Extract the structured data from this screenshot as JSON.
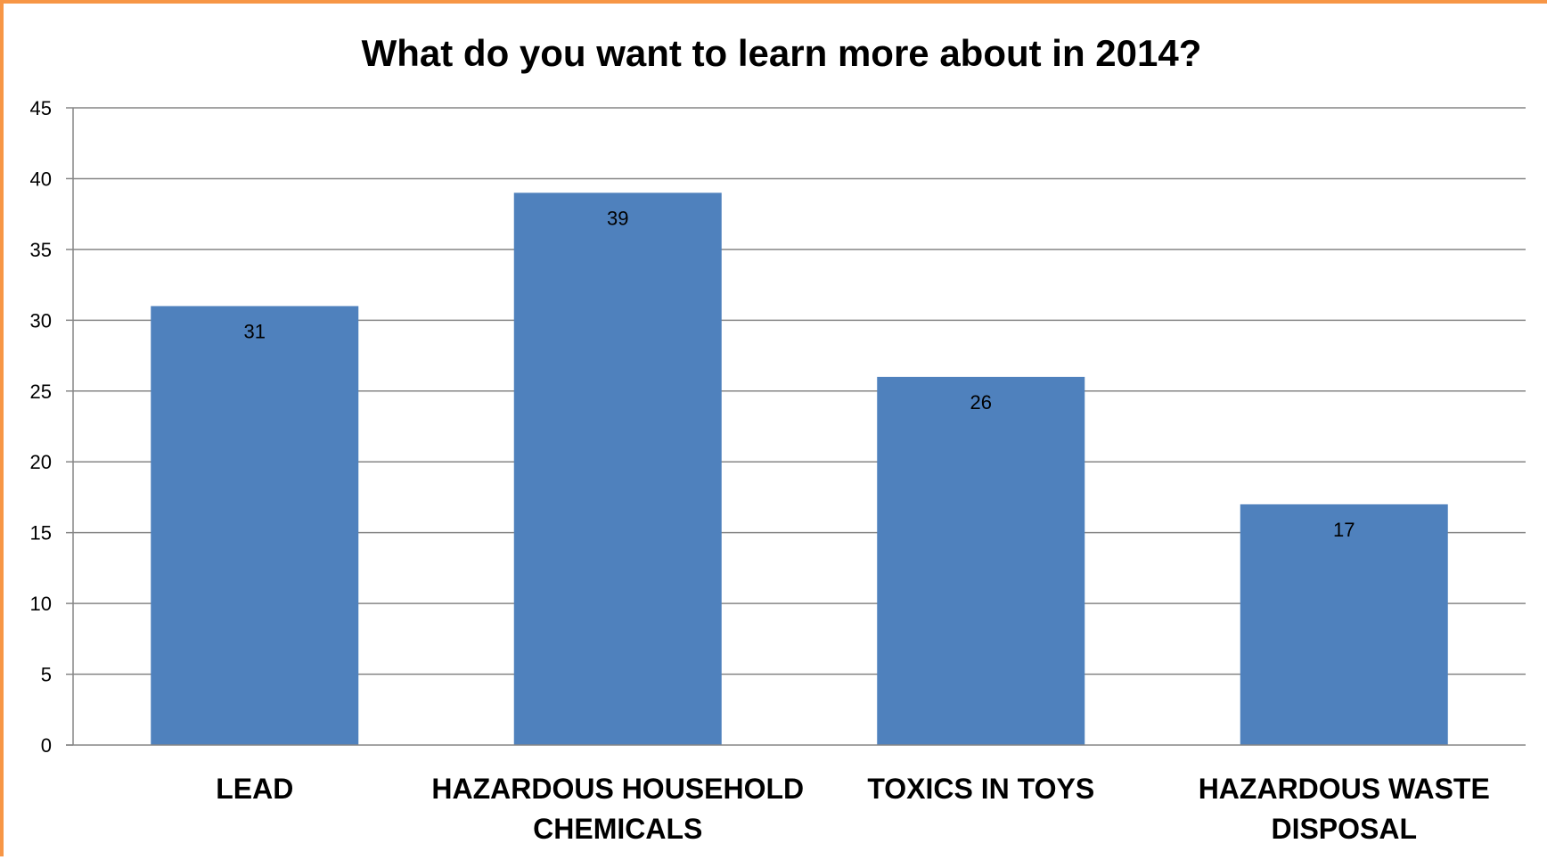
{
  "chart_data": {
    "type": "bar",
    "title": "What do you want to learn more about in 2014?",
    "categories": [
      [
        "LEAD"
      ],
      [
        "HAZARDOUS HOUSEHOLD",
        "CHEMICALS"
      ],
      [
        "TOXICS IN TOYS"
      ],
      [
        "HAZARDOUS WASTE",
        "DISPOSAL"
      ]
    ],
    "values": [
      31,
      39,
      26,
      17
    ],
    "data_labels": [
      "31",
      "39",
      "26",
      "17"
    ],
    "xlabel": "",
    "ylabel": "",
    "ylim": [
      0,
      45
    ],
    "yticks": [
      "0",
      "5",
      "10",
      "15",
      "20",
      "25",
      "30",
      "35",
      "40",
      "45"
    ],
    "grid": true,
    "legend": "none",
    "colors": {
      "bar": "#4f81bd",
      "gridline": "#868686",
      "frame": "#f79646"
    }
  }
}
